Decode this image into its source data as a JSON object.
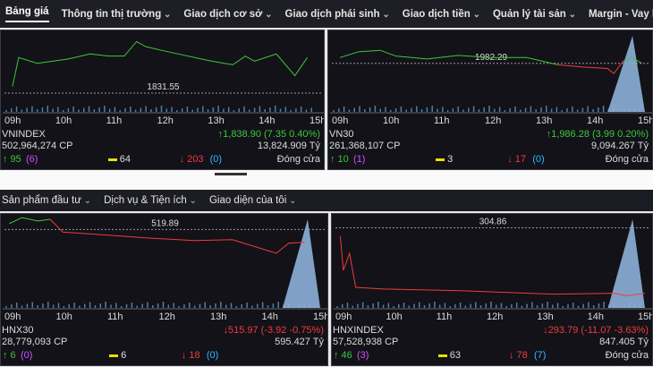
{
  "top_nav": [
    "Bảng giá",
    "Thông tin thị trường",
    "Giao dịch cơ sở",
    "Giao dịch phái sinh",
    "Giao dịch tiền",
    "Quản lý tài sản",
    "Margin - Vay ký quỹ"
  ],
  "sub_nav": [
    "Sản phẩm đầu tư",
    "Dịch vụ & Tiện ích",
    "Giao diện của tôi"
  ],
  "time_labels": [
    "09h",
    "10h",
    "11h",
    "12h",
    "13h",
    "14h",
    "15h"
  ],
  "panels": [
    {
      "name": "VNINDEX",
      "volume": "502,964,274 CP",
      "change": "↑1,838.90 (7.35 0.40%)",
      "value": "13,824.909 Tỷ",
      "status": "Đóng cửa",
      "up": "↑ 95",
      "up_ceiling": "(6)",
      "flat": "64",
      "down": "↓ 203",
      "down_floor": "(0)",
      "reference": "1831.55"
    },
    {
      "name": "VN30",
      "volume": "261,368,107 CP",
      "change": "↑1,986.28 (3.99 0.20%)",
      "value": "9,094.267 Tỷ",
      "status": "Đóng cửa",
      "up": "↑ 10",
      "up_ceiling": "(1)",
      "flat": "3",
      "down": "↓ 17",
      "down_floor": "(0)",
      "reference": "1982.29"
    },
    {
      "name": "HNX30",
      "volume": "28,779,093 CP",
      "change": "↓515.97 (-3.92 -0.75%)",
      "value": "595.427 Tỷ",
      "up": "↑ 6",
      "up_ceiling": "(0)",
      "flat": "6",
      "down": "↓ 18",
      "down_floor": "(0)",
      "reference": "519.89"
    },
    {
      "name": "HNXINDEX",
      "volume": "57,528,938 CP",
      "change": "↓293.79 (-11.07 -3.63%)",
      "value": "847.405 Tỷ",
      "status": "Đóng cửa",
      "up": "↑ 46",
      "up_ceiling": "(3)",
      "flat": "63",
      "down": "↓ 78",
      "down_floor": "(7)",
      "reference": "304.86"
    }
  ]
}
